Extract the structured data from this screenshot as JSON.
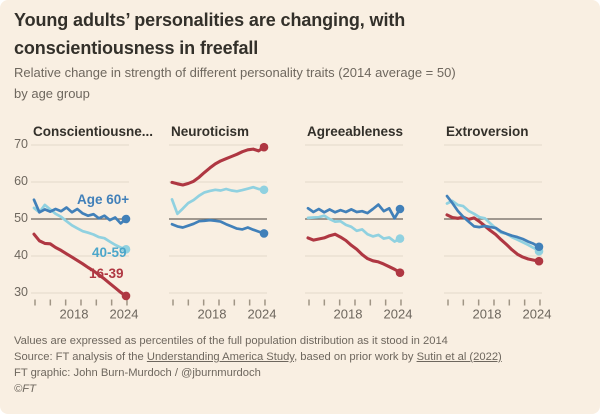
{
  "header": {
    "title_line1": "Young adults’ personalities are changing, with",
    "title_line2": "conscientiousness in freefall",
    "subtitle_line1": "Relative change in strength of different personality traits (2014 average = 50)",
    "subtitle_line2": "by age group"
  },
  "colors": {
    "background": "#f9efe2",
    "title_text": "#33302a",
    "muted_text": "#6e675e",
    "gridline": "#e2d8c9",
    "baseline": "#6b655e",
    "tick": "#a09585",
    "age_16_39": "#af3742",
    "age_40_59": "#90d1e0",
    "age_40_59_label": "#4ba6ca",
    "age_60_plus": "#4180b9"
  },
  "chart_data": {
    "type": "line",
    "x_years": [
      2014.0,
      2014.7,
      2015.4,
      2016.0,
      2016.7,
      2017.4,
      2018.1,
      2018.7,
      2019.4,
      2020.1,
      2020.8,
      2021.4,
      2022.1,
      2022.8,
      2023.5,
      2024.1,
      2024.8,
      2025.5
    ],
    "y_ticks": [
      70,
      60,
      50,
      40,
      30
    ],
    "ylim": [
      26,
      73
    ],
    "baseline_value": 50,
    "x_tick_labels": [
      "2018",
      "2024"
    ],
    "legend_labels": {
      "age_60_plus": "Age 60+",
      "age_40_59": "40-59",
      "age_16_39": "16-39"
    },
    "panels": [
      {
        "title": "Conscientiousne...",
        "series": [
          {
            "name": "16-39",
            "color_key": "age_16_39",
            "values": [
              45.9,
              44.1,
              43.4,
              43.3,
              42.3,
              41.5,
              40.6,
              39.7,
              38.8,
              37.9,
              36.9,
              36.0,
              34.9,
              33.8,
              32.6,
              31.4,
              30.2,
              29.2
            ]
          },
          {
            "name": "40-59",
            "color_key": "age_40_59",
            "values": [
              53.0,
              51.8,
              53.8,
              52.6,
              51.4,
              50.6,
              49.4,
              48.3,
              47.5,
              46.7,
              46.3,
              45.8,
              45.1,
              44.8,
              43.9,
              43.0,
              42.3,
              41.8
            ]
          },
          {
            "name": "Age 60+",
            "color_key": "age_60_plus",
            "values": [
              55.2,
              51.8,
              52.6,
              52.0,
              52.7,
              52.1,
              53.1,
              51.8,
              52.7,
              51.5,
              50.9,
              51.3,
              50.2,
              50.9,
              49.7,
              50.4,
              48.8,
              50.0
            ]
          }
        ]
      },
      {
        "title": "Neuroticism",
        "series": [
          {
            "name": "16-39",
            "color_key": "age_16_39",
            "values": [
              59.9,
              59.5,
              59.2,
              59.6,
              60.2,
              61.3,
              62.6,
              63.8,
              64.9,
              65.7,
              66.3,
              66.9,
              67.5,
              68.2,
              68.7,
              68.9,
              68.4,
              69.4
            ]
          },
          {
            "name": "40-59",
            "color_key": "age_40_59",
            "values": [
              55.3,
              51.4,
              52.8,
              54.3,
              55.1,
              56.3,
              57.2,
              57.6,
              57.9,
              57.7,
              58.1,
              57.7,
              57.5,
              57.8,
              58.2,
              58.6,
              58.1,
              57.9
            ]
          },
          {
            "name": "Age 60+",
            "color_key": "age_60_plus",
            "values": [
              48.6,
              48.0,
              47.7,
              48.2,
              48.7,
              49.4,
              49.5,
              49.7,
              49.5,
              49.3,
              48.6,
              48.0,
              47.4,
              47.2,
              47.7,
              47.1,
              46.6,
              46.1
            ]
          }
        ]
      },
      {
        "title": "Agreeableness",
        "series": [
          {
            "name": "16-39",
            "color_key": "age_16_39",
            "values": [
              44.9,
              44.3,
              44.6,
              44.9,
              45.5,
              45.9,
              45.1,
              44.2,
              42.9,
              41.8,
              40.4,
              39.3,
              38.7,
              38.4,
              37.8,
              37.1,
              36.4,
              35.5
            ]
          },
          {
            "name": "40-59",
            "color_key": "age_40_59",
            "values": [
              50.3,
              50.4,
              50.5,
              50.9,
              50.0,
              49.3,
              49.4,
              48.4,
              47.9,
              46.8,
              47.2,
              45.9,
              45.3,
              45.7,
              44.7,
              45.0,
              43.9,
              44.7
            ]
          },
          {
            "name": "Age 60+",
            "color_key": "age_60_plus",
            "values": [
              52.9,
              51.9,
              52.7,
              51.8,
              52.6,
              51.8,
              52.4,
              51.9,
              52.6,
              51.9,
              52.1,
              51.6,
              52.7,
              53.9,
              52.1,
              52.9,
              50.2,
              52.7
            ]
          }
        ]
      },
      {
        "title": "Extroversion",
        "series": [
          {
            "name": "16-39",
            "color_key": "age_16_39",
            "values": [
              51.1,
              50.4,
              50.2,
              50.5,
              49.9,
              50.3,
              49.3,
              48.1,
              46.9,
              45.8,
              44.4,
              43.1,
              41.7,
              40.5,
              39.7,
              39.2,
              38.9,
              38.6
            ]
          },
          {
            "name": "40-59",
            "color_key": "age_40_59",
            "values": [
              54.2,
              54.9,
              53.8,
              53.5,
              52.2,
              51.4,
              50.5,
              50.2,
              48.8,
              47.5,
              46.3,
              46.0,
              45.1,
              44.4,
              43.7,
              43.0,
              42.2,
              41.3
            ]
          },
          {
            "name": "Age 60+",
            "color_key": "age_60_plus",
            "values": [
              56.2,
              54.3,
              52.2,
              50.6,
              49.3,
              48.0,
              47.8,
              48.1,
              47.8,
              47.6,
              46.6,
              46.0,
              45.5,
              45.1,
              44.6,
              43.9,
              43.3,
              42.5
            ]
          }
        ]
      }
    ]
  },
  "footer": {
    "note": "Values are expressed as percentiles of the full population distribution as it stood in 2014",
    "source_prefix": "Source: FT analysis of the ",
    "source_link1": "Understanding America Study",
    "source_mid": ", based on prior work by ",
    "source_link2": "Sutin et al (2022)",
    "credit": "FT graphic: John Burn-Murdoch / @jburnmurdoch",
    "copyright": "©FT"
  }
}
